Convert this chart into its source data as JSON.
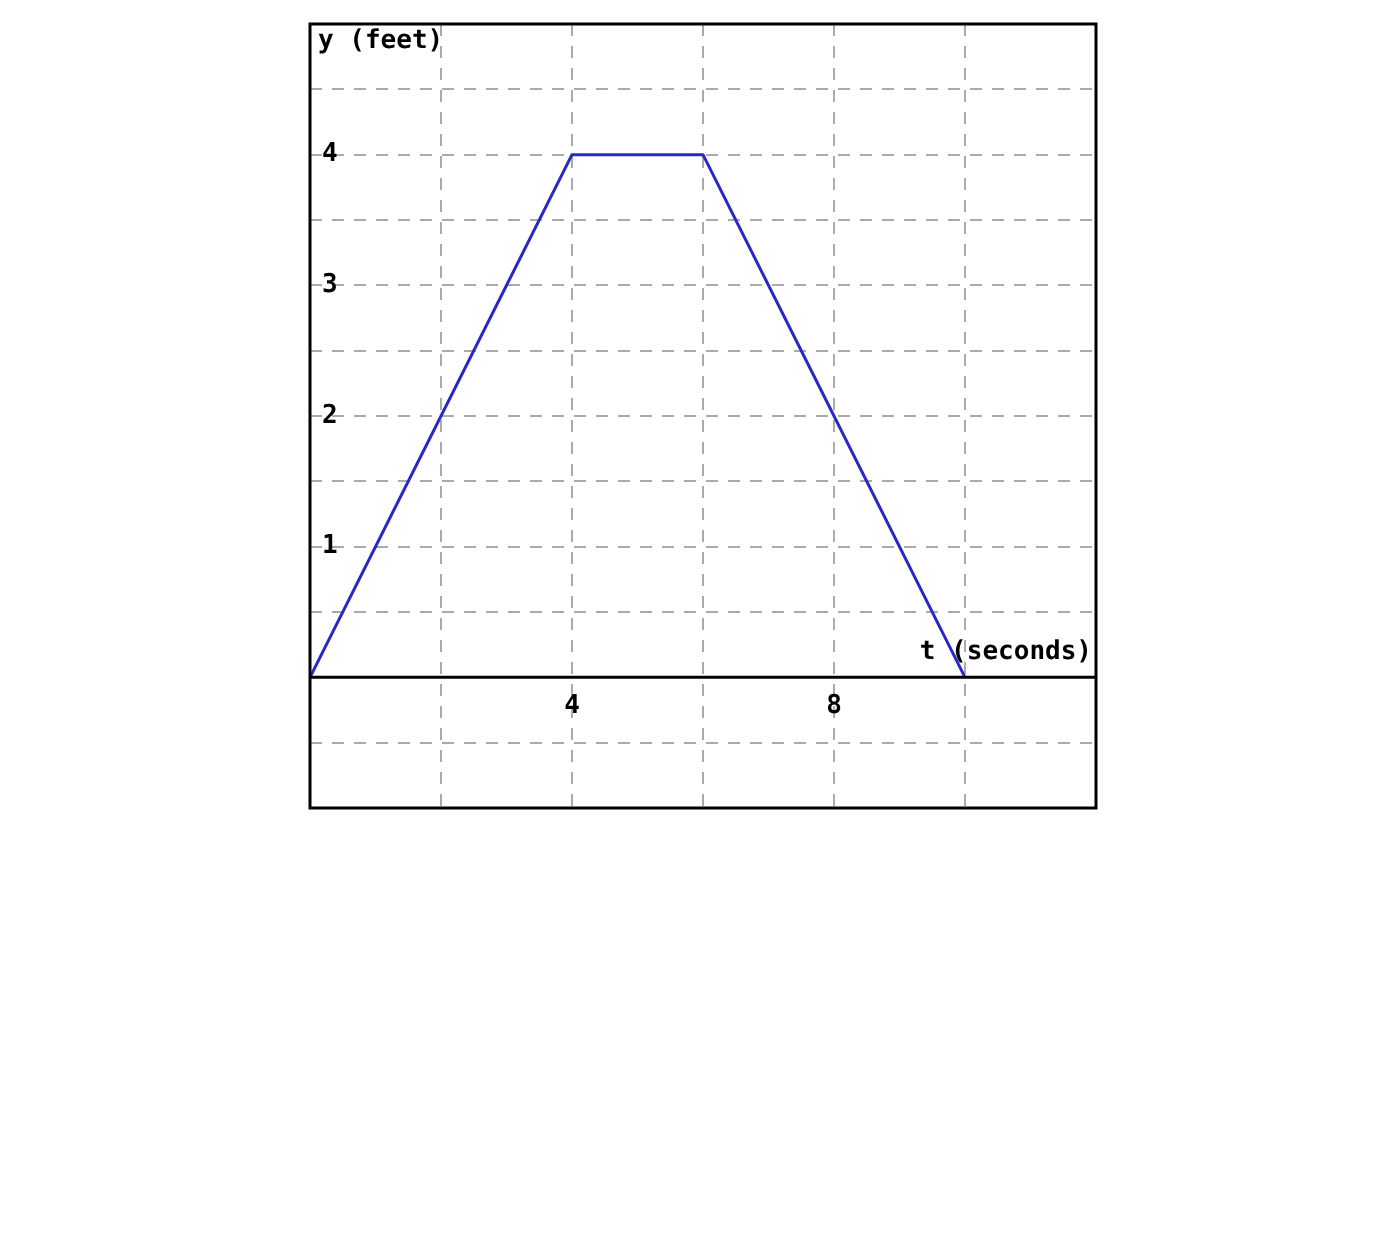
{
  "chart_data": {
    "type": "line",
    "xlabel": "t (seconds)",
    "ylabel": "y (feet)",
    "x": [
      0,
      4,
      6,
      10
    ],
    "series": [
      {
        "color": "#2828c8",
        "values": [
          0,
          4,
          4,
          0
        ]
      }
    ],
    "xlim": [
      0,
      12
    ],
    "xticks": [
      {
        "value": 0,
        "label": null
      },
      {
        "value": 2,
        "label": null
      },
      4,
      {
        "value": 6,
        "label": null
      },
      8,
      {
        "value": 10,
        "label": null
      },
      {
        "value": 12,
        "label": null
      }
    ],
    "ylim": [
      -1,
      5
    ],
    "yticks": [
      {
        "value": -1,
        "label": null
      },
      {
        "value": -0.5,
        "label": null
      },
      {
        "value": 0,
        "label": null
      },
      {
        "value": 0.5,
        "label": null
      },
      1,
      {
        "value": 1.5,
        "label": null
      },
      2,
      {
        "value": 2.5,
        "label": null
      },
      3,
      {
        "value": 3.5,
        "label": null
      },
      4,
      {
        "value": 4.5,
        "label": null
      },
      {
        "value": 5,
        "label": null
      }
    ],
    "grid": true,
    "legend": false,
    "marker": "none",
    "line_style": "solid"
  }
}
